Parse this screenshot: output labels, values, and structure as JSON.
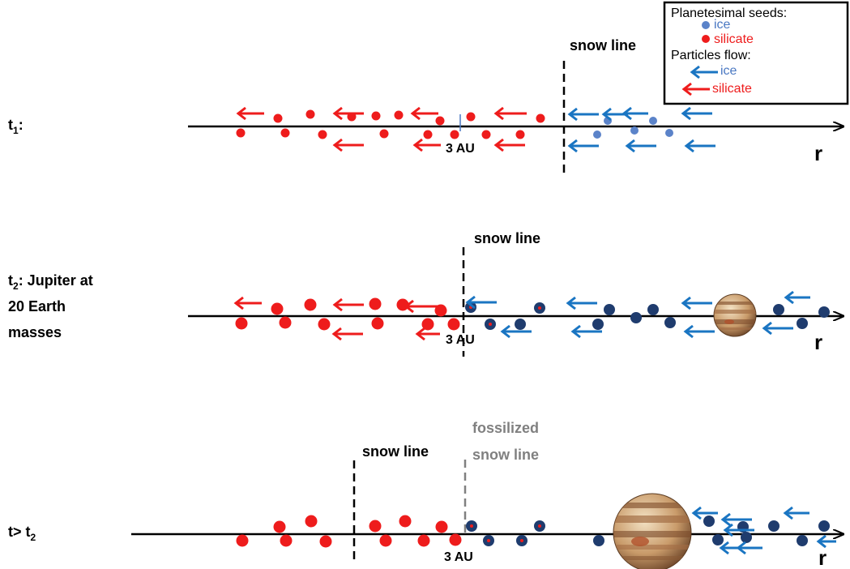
{
  "legend": {
    "seeds_title": "Planetesimal seeds:",
    "seed_ice": "ice",
    "seed_silicate": "silicate",
    "flow_title": "Particles flow:",
    "flow_ice": "ice",
    "flow_silicate": "silicate"
  },
  "colors": {
    "ice_light": "#5b83c9",
    "ice_dark": "#1f3c6e",
    "ice_arrow": "#1a75c2",
    "silicate": "#ee1c1c",
    "axis": "#000000",
    "fossil": "#808080"
  },
  "axis_label": "r",
  "distance_label": "3 AU",
  "panels": [
    {
      "id": "t1",
      "time_label": "t",
      "time_sub": "1",
      "time_suffix": ":",
      "snow_line_label": "snow line"
    },
    {
      "id": "t2",
      "time_label": "t",
      "time_sub": "2",
      "time_suffix": ": Jupiter at",
      "time_line2": "20 Earth",
      "time_line3": "masses",
      "snow_line_label": "snow line"
    },
    {
      "id": "t3",
      "time_label": "t> t",
      "time_sub": "2",
      "snow_line_label": "snow line",
      "fossil_line1": "fossilized",
      "fossil_line2": "snow line"
    }
  ],
  "icons": {
    "planet": "jupiter-icon",
    "arrow": "left-arrow-icon"
  }
}
